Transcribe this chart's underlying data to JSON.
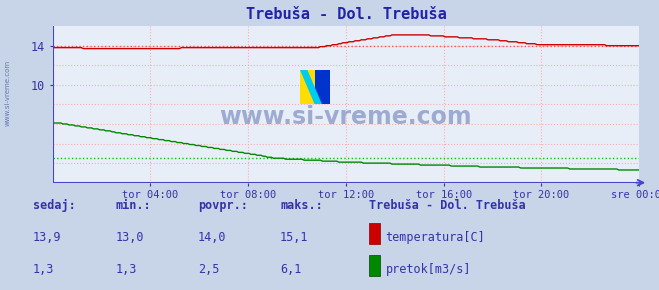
{
  "title": "Trebuša - Dol. Trebuša",
  "bg_color": "#c8d4e8",
  "plot_bg_color": "#e8eef8",
  "grid_color": "#ffaaaa",
  "temp_color": "#cc0000",
  "flow_color": "#008800",
  "blue_axis_color": "#4444cc",
  "red_arrow_color": "#cc0000",
  "x_label_color": "#3333aa",
  "title_color": "#2222aa",
  "tick_label_color": "#3333aa",
  "watermark_color": "#7788bb",
  "watermark_text": "www.si-vreme.com",
  "left_text_color": "#5566aa",
  "temp_avg_line": 14.0,
  "flow_avg_line": 2.5,
  "y_min": 0,
  "y_max": 16,
  "y_ticks": [
    10,
    14
  ],
  "x_ticks_labels": [
    "tor 04:00",
    "tor 08:00",
    "tor 12:00",
    "tor 16:00",
    "tor 20:00",
    "sre 00:00"
  ],
  "n_points": 288,
  "legend_title": "Trebuša - Dol. Trebuša",
  "legend_temp_label": "temperatura[C]",
  "legend_flow_label": "pretok[m3/s]",
  "table_headers": [
    "sedaj:",
    "min.:",
    "povpr.:",
    "maks.:"
  ],
  "table_temp": [
    "13,9",
    "13,0",
    "14,0",
    "15,1"
  ],
  "table_flow": [
    "1,3",
    "1,3",
    "2,5",
    "6,1"
  ]
}
